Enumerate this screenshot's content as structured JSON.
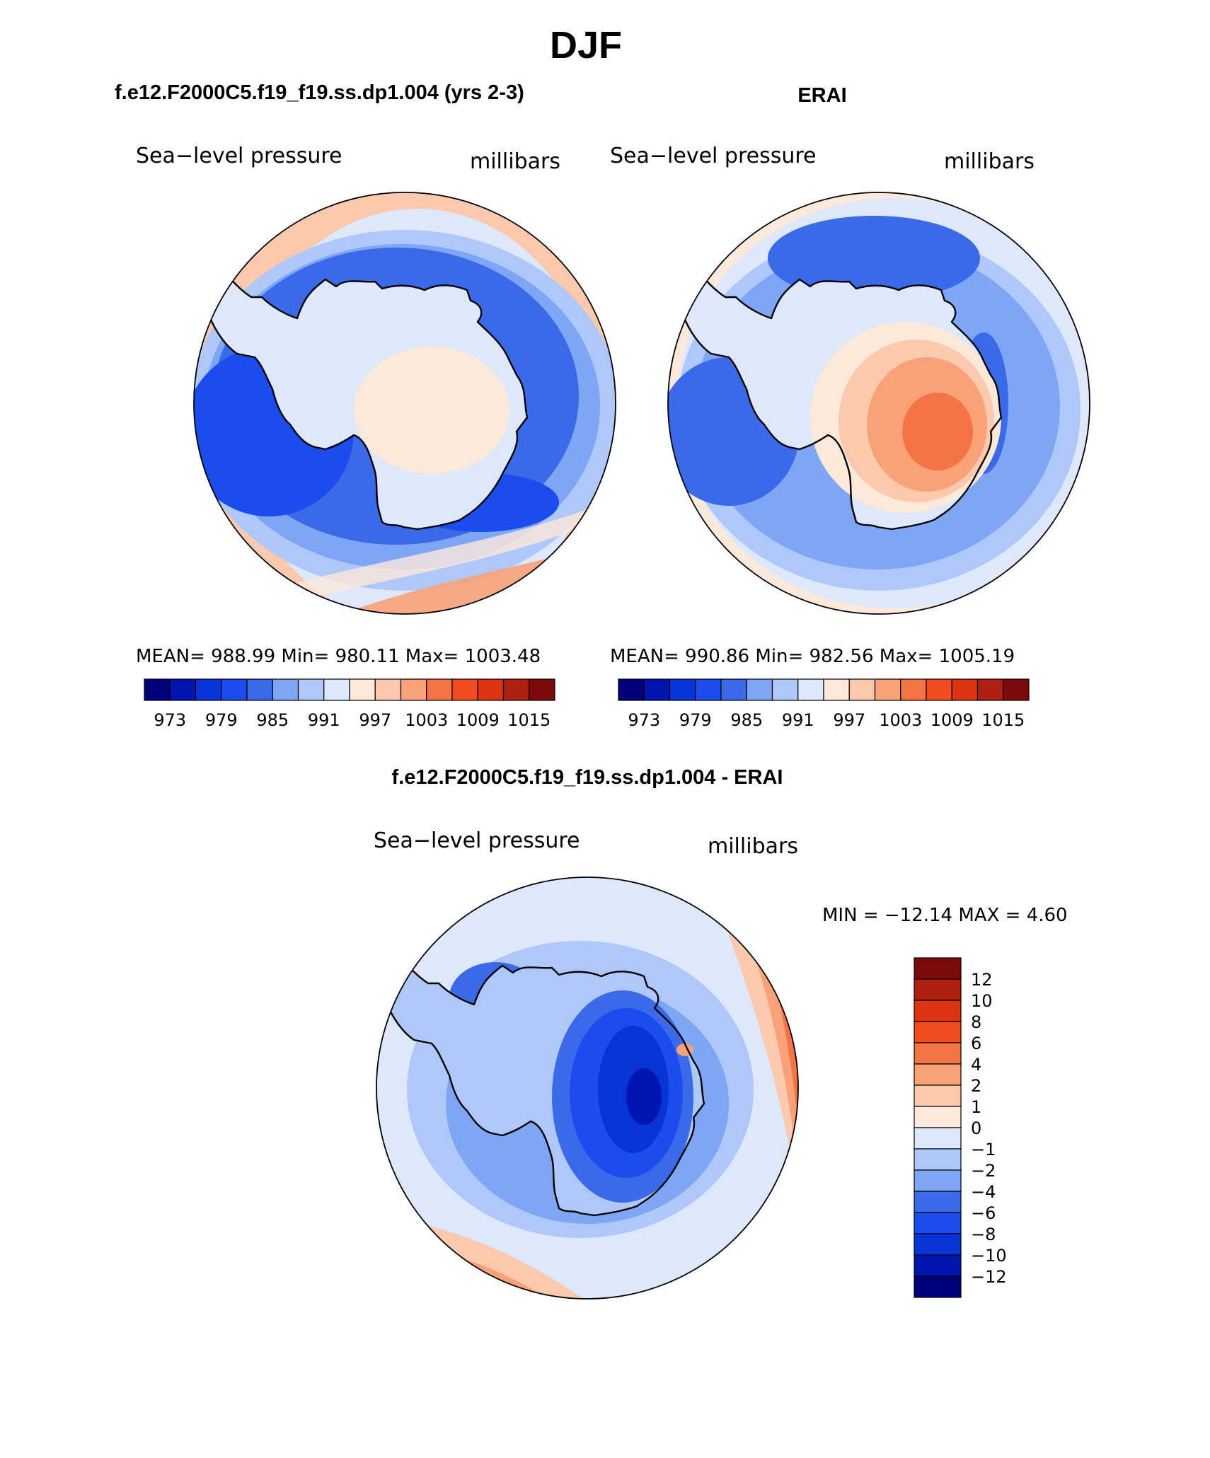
{
  "figure": {
    "season_title": "DJF",
    "panels": {
      "model": {
        "case_title": "f.e12.F2000C5.f19_f19.ss.dp1.004 (yrs 2-3)",
        "left_label": "Sea−level pressure",
        "right_label": "millibars",
        "stats": "MEAN=  988.99   Min=  980.11   Max=  1003.48"
      },
      "obs": {
        "case_title": "ERAI",
        "left_label": "Sea−level pressure",
        "right_label": "millibars",
        "stats": "MEAN=  990.86   Min=  982.56   Max=  1005.19"
      },
      "diff": {
        "case_title": "f.e12.F2000C5.f19_f19.ss.dp1.004 - ERAI",
        "left_label": "Sea−level pressure",
        "right_label": "millibars",
        "stats": "MIN  =  −12.14  MAX  =     4.60"
      }
    },
    "colorbar_top": {
      "tick_labels": [
        "973",
        "979",
        "985",
        "991",
        "997",
        "1003",
        "1009",
        "1015"
      ]
    },
    "colorbar_diff": {
      "tick_labels": [
        "12",
        "10",
        "8",
        "6",
        "4",
        "2",
        "1",
        "0",
        "−1",
        "−2",
        "−4",
        "−6",
        "−8",
        "−10",
        "−12"
      ]
    }
  },
  "chart_data": [
    {
      "type": "heatmap",
      "title": "f.e12.F2000C5.f19_f19.ss.dp1.004 (yrs 2-3)",
      "variable": "Sea-level pressure",
      "units": "millibars",
      "projection": "south polar stereographic",
      "mean": 988.99,
      "min": 980.11,
      "max": 1003.48,
      "levels": [
        973,
        976,
        979,
        982,
        985,
        988,
        991,
        994,
        997,
        1000,
        1003,
        1006,
        1009,
        1012,
        1015
      ],
      "level_labels": [
        "973",
        "979",
        "985",
        "991",
        "997",
        "1003",
        "1009",
        "1015"
      ],
      "colors": [
        "#00007a",
        "#0015b0",
        "#0733d8",
        "#1a4cf0",
        "#3a6ae8",
        "#7ea6f5",
        "#aec8fb",
        "#dde8fc",
        "#fde9da",
        "#fdc9ae",
        "#f9a279",
        "#f67346",
        "#f24d20",
        "#dc3413",
        "#b02010",
        "#7c0a08"
      ]
    },
    {
      "type": "heatmap",
      "title": "ERAI",
      "variable": "Sea-level pressure",
      "units": "millibars",
      "projection": "south polar stereographic",
      "mean": 990.86,
      "min": 982.56,
      "max": 1005.19,
      "levels": [
        973,
        976,
        979,
        982,
        985,
        988,
        991,
        994,
        997,
        1000,
        1003,
        1006,
        1009,
        1012,
        1015
      ],
      "level_labels": [
        "973",
        "979",
        "985",
        "991",
        "997",
        "1003",
        "1009",
        "1015"
      ]
    },
    {
      "type": "heatmap",
      "title": "f.e12.F2000C5.f19_f19.ss.dp1.004 - ERAI",
      "variable": "Sea-level pressure",
      "units": "millibars",
      "projection": "south polar stereographic",
      "min": -12.14,
      "max": 4.6,
      "levels": [
        -12,
        -10,
        -8,
        -6,
        -4,
        -2,
        -1,
        0,
        1,
        2,
        4,
        6,
        8,
        10,
        12
      ],
      "level_labels": [
        "12",
        "10",
        "8",
        "6",
        "4",
        "2",
        "1",
        "0",
        "−1",
        "−2",
        "−4",
        "−6",
        "−8",
        "−10",
        "−12"
      ]
    }
  ],
  "palette": {
    "c0": "#00007a",
    "c1": "#0015b0",
    "c2": "#0733d8",
    "c3": "#1a4cf0",
    "c4": "#3a6ae8",
    "c5": "#7ea6f5",
    "c6": "#aec8fb",
    "c7": "#dde8fc",
    "c8": "#fde9da",
    "c9": "#fdc9ae",
    "c10": "#f9a279",
    "c11": "#f67346",
    "c12": "#f24d20",
    "c13": "#dc3413",
    "c14": "#b02010",
    "c15": "#7c0a08"
  }
}
